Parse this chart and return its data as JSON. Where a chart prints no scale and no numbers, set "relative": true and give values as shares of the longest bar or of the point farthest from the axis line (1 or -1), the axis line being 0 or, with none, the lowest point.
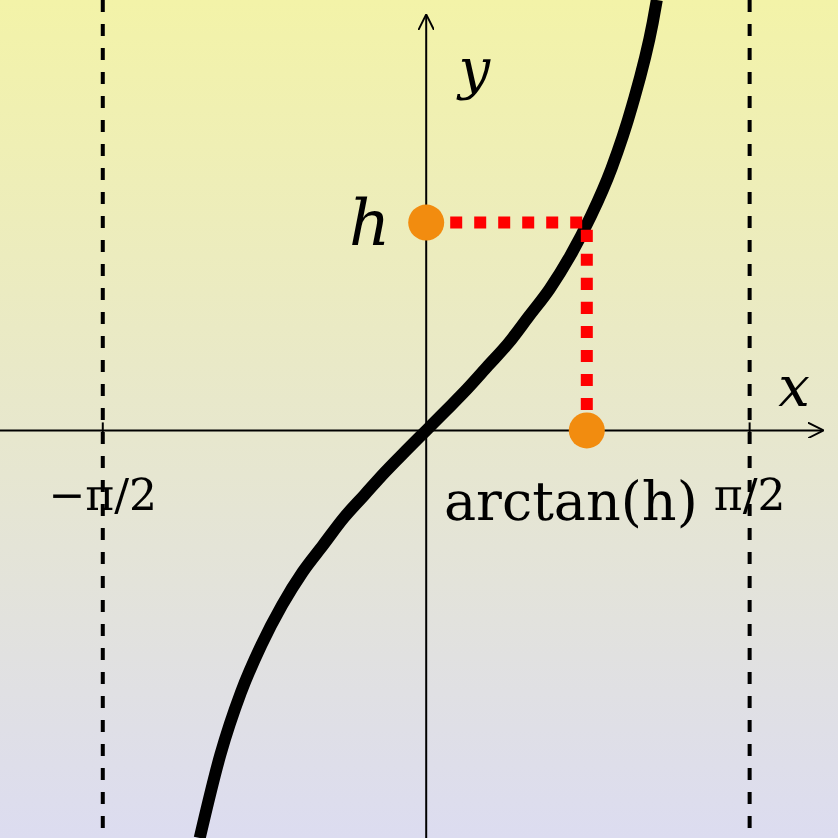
{
  "chart_data": {
    "type": "line",
    "xlabel": "x",
    "ylabel": "y",
    "relative": true,
    "xlim": [
      -2.07,
      2.0
    ],
    "xticks": [
      {
        "value": -1.5708,
        "label": "−π/2"
      },
      {
        "value": 1.5708,
        "label": "π/2"
      }
    ],
    "tick_labels": "x",
    "grid": false,
    "series": [
      {
        "color": "#000000",
        "marker": "none",
        "line_style": "solid",
        "x": [
          -1.1,
          -1.0,
          -0.9,
          -0.8,
          -0.7,
          -0.6,
          -0.5,
          -0.4,
          -0.3,
          -0.2,
          -0.1,
          0,
          0.1,
          0.2,
          0.3,
          0.4,
          0.5,
          0.6,
          0.7,
          0.8,
          0.9,
          1.0,
          1.1,
          1.12
        ],
        "values": [
          -0.947,
          -0.754,
          -0.609,
          -0.498,
          -0.406,
          -0.329,
          -0.266,
          -0.203,
          -0.15,
          -0.097,
          -0.048,
          0,
          0.048,
          0.097,
          0.15,
          0.203,
          0.266,
          0.329,
          0.406,
          0.498,
          0.609,
          0.754,
          0.947,
          1
        ]
      },
      {
        "type": "line",
        "color": "#ff0000",
        "marker": "none",
        "line_style": "dotted",
        "x": [
          0,
          0.78,
          0.78
        ],
        "values": [
          0.483,
          0.483,
          0
        ]
      },
      {
        "type": "scatter",
        "color": "#f28c0f",
        "marker": "circle",
        "x": [
          0,
          0.78
        ],
        "values": [
          0.483,
          0
        ]
      }
    ],
    "ref_lines": [
      {
        "axis": "x",
        "value": -1.5708,
        "color": "#000000",
        "line_style": "dashed"
      },
      {
        "axis": "x",
        "value": 1.5708,
        "color": "#000000",
        "line_style": "dashed"
      }
    ],
    "annotations": [
      {
        "text": "h",
        "x": 0,
        "y": 0.483
      },
      {
        "text": "arctan(h)",
        "x": 0.78,
        "y": 0
      }
    ]
  }
}
